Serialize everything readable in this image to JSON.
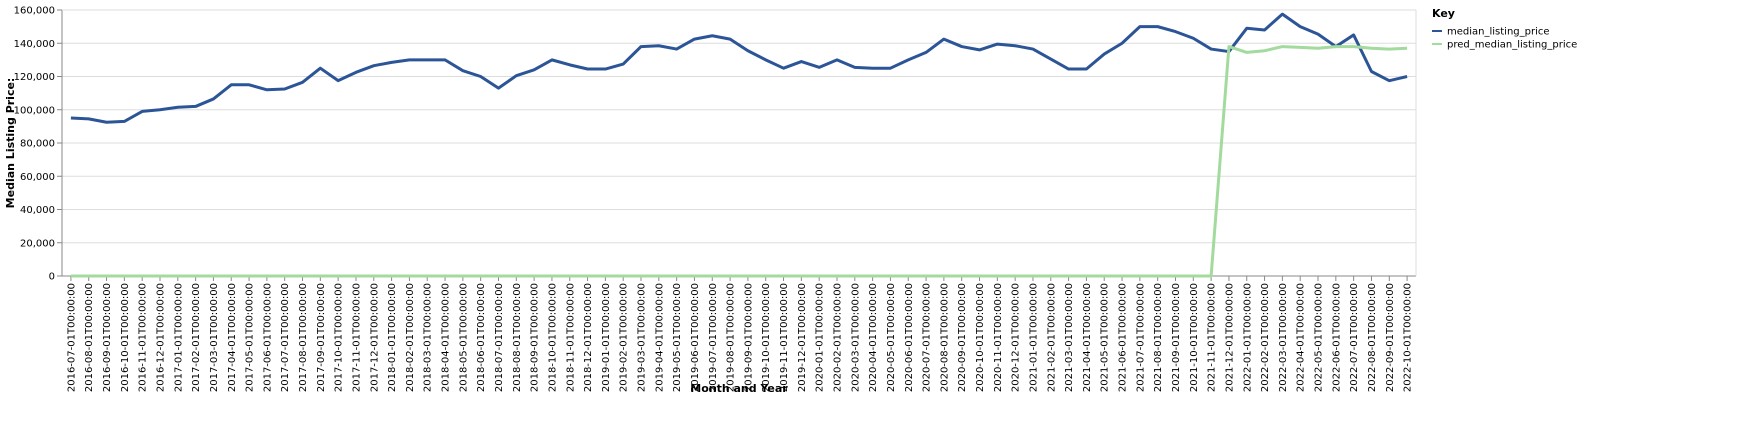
{
  "chart_data": {
    "type": "line",
    "x_label": "Month and Year",
    "y_label": "Median Listing Price:",
    "legend_title": "Key",
    "legend_position": "top-right",
    "grid": true,
    "categories": [
      "2016-07-01T00:00:00",
      "2016-08-01T00:00:00",
      "2016-09-01T00:00:00",
      "2016-10-01T00:00:00",
      "2016-11-01T00:00:00",
      "2016-12-01T00:00:00",
      "2017-01-01T00:00:00",
      "2017-02-01T00:00:00",
      "2017-03-01T00:00:00",
      "2017-04-01T00:00:00",
      "2017-05-01T00:00:00",
      "2017-06-01T00:00:00",
      "2017-07-01T00:00:00",
      "2017-08-01T00:00:00",
      "2017-09-01T00:00:00",
      "2017-10-01T00:00:00",
      "2017-11-01T00:00:00",
      "2017-12-01T00:00:00",
      "2018-01-01T00:00:00",
      "2018-02-01T00:00:00",
      "2018-03-01T00:00:00",
      "2018-04-01T00:00:00",
      "2018-05-01T00:00:00",
      "2018-06-01T00:00:00",
      "2018-07-01T00:00:00",
      "2018-08-01T00:00:00",
      "2018-09-01T00:00:00",
      "2018-10-01T00:00:00",
      "2018-11-01T00:00:00",
      "2018-12-01T00:00:00",
      "2019-01-01T00:00:00",
      "2019-02-01T00:00:00",
      "2019-03-01T00:00:00",
      "2019-04-01T00:00:00",
      "2019-05-01T00:00:00",
      "2019-06-01T00:00:00",
      "2019-07-01T00:00:00",
      "2019-08-01T00:00:00",
      "2019-09-01T00:00:00",
      "2019-10-01T00:00:00",
      "2019-11-01T00:00:00",
      "2019-12-01T00:00:00",
      "2020-01-01T00:00:00",
      "2020-02-01T00:00:00",
      "2020-03-01T00:00:00",
      "2020-04-01T00:00:00",
      "2020-05-01T00:00:00",
      "2020-06-01T00:00:00",
      "2020-07-01T00:00:00",
      "2020-08-01T00:00:00",
      "2020-09-01T00:00:00",
      "2020-10-01T00:00:00",
      "2020-11-01T00:00:00",
      "2020-12-01T00:00:00",
      "2021-01-01T00:00:00",
      "2021-02-01T00:00:00",
      "2021-03-01T00:00:00",
      "2021-04-01T00:00:00",
      "2021-05-01T00:00:00",
      "2021-06-01T00:00:00",
      "2021-07-01T00:00:00",
      "2021-08-01T00:00:00",
      "2021-09-01T00:00:00",
      "2021-10-01T00:00:00",
      "2021-11-01T00:00:00",
      "2021-12-01T00:00:00",
      "2022-01-01T00:00:00",
      "2022-02-01T00:00:00",
      "2022-03-01T00:00:00",
      "2022-04-01T00:00:00",
      "2022-05-01T00:00:00",
      "2022-06-01T00:00:00",
      "2022-07-01T00:00:00",
      "2022-08-01T00:00:00",
      "2022-09-01T00:00:00",
      "2022-10-01T00:00:00"
    ],
    "series": [
      {
        "name": "median_listing_price",
        "color": "#2c5597",
        "values": [
          95000,
          94500,
          92500,
          93000,
          99000,
          100000,
          101500,
          102000,
          106500,
          115000,
          115000,
          112000,
          112500,
          116500,
          125000,
          117500,
          122500,
          126500,
          128500,
          130000,
          130000,
          130000,
          123500,
          120000,
          113000,
          120500,
          124000,
          130000,
          127000,
          124500,
          124500,
          127500,
          138000,
          138500,
          136500,
          142500,
          144500,
          142500,
          135500,
          130000,
          125000,
          129000,
          125500,
          130000,
          125500,
          125000,
          125000,
          130000,
          134500,
          142500,
          138000,
          136000,
          139500,
          138500,
          136500,
          130500,
          124500,
          124500,
          133500,
          140000,
          150000,
          150000,
          147000,
          143000,
          136500,
          135000,
          149000,
          148000,
          157500,
          150000,
          145500,
          138000,
          145000,
          123000,
          117500,
          120000
        ]
      },
      {
        "name": "pred_median_listing_price",
        "color": "#a3da9d",
        "values": [
          0,
          0,
          0,
          0,
          0,
          0,
          0,
          0,
          0,
          0,
          0,
          0,
          0,
          0,
          0,
          0,
          0,
          0,
          0,
          0,
          0,
          0,
          0,
          0,
          0,
          0,
          0,
          0,
          0,
          0,
          0,
          0,
          0,
          0,
          0,
          0,
          0,
          0,
          0,
          0,
          0,
          0,
          0,
          0,
          0,
          0,
          0,
          0,
          0,
          0,
          0,
          0,
          0,
          0,
          0,
          0,
          0,
          0,
          0,
          0,
          0,
          0,
          0,
          0,
          0,
          138000,
          134500,
          135500,
          138000,
          137500,
          137000,
          138000,
          138000,
          137000,
          136500,
          137000
        ]
      }
    ],
    "ylim": [
      0,
      160000
    ],
    "yticks": [
      {
        "value": 0,
        "label": "0"
      },
      {
        "value": 20000,
        "label": "20,000"
      },
      {
        "value": 40000,
        "label": "40,000"
      },
      {
        "value": 60000,
        "label": "60,000"
      },
      {
        "value": 80000,
        "label": "80,000"
      },
      {
        "value": 100000,
        "label": "100,000"
      },
      {
        "value": 120000,
        "label": "120,000"
      },
      {
        "value": 140000,
        "label": "140,000"
      },
      {
        "value": 160000,
        "label": "160,000"
      }
    ]
  }
}
